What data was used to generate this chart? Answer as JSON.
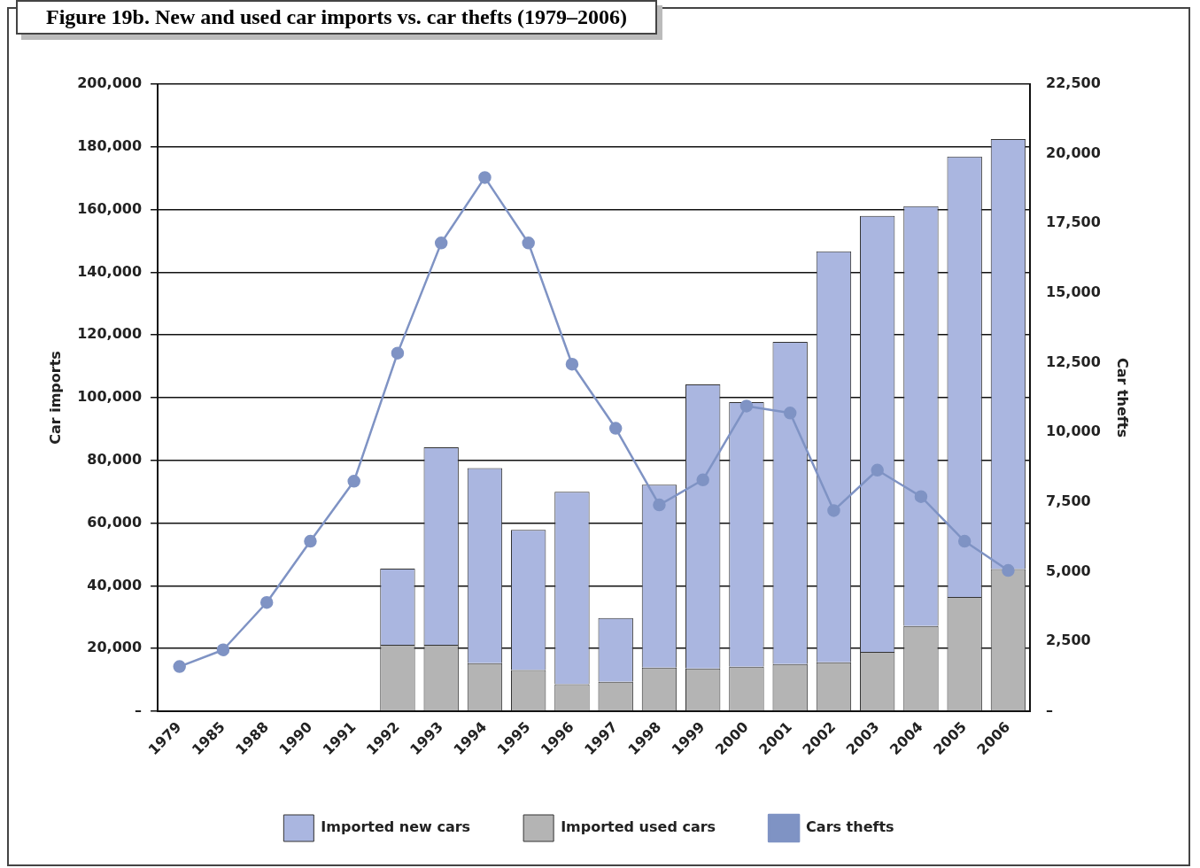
{
  "chart_data": {
    "type": "bar",
    "title": "Figure 19b. New and used car imports vs. car thefts (1979–2006)",
    "ylabel": "Car imports",
    "y2label": "Car thefts",
    "categories": [
      "1979",
      "1985",
      "1988",
      "1990",
      "1991",
      "1992",
      "1993",
      "1994",
      "1995",
      "1996",
      "1997",
      "1998",
      "1999",
      "2000",
      "2001",
      "2002",
      "2003",
      "2004",
      "2005",
      "2006"
    ],
    "stacked": true,
    "series": [
      {
        "name": "Imported used cars",
        "color": "#b4b4b4",
        "values": [
          null,
          null,
          null,
          null,
          null,
          21200,
          21200,
          15300,
          13100,
          8600,
          9400,
          13900,
          13600,
          14200,
          15000,
          15600,
          18900,
          27200,
          36400,
          45300
        ]
      },
      {
        "name": "Imported new cars",
        "color": "#aab6e0",
        "values": [
          null,
          null,
          null,
          null,
          null,
          24300,
          63000,
          62200,
          44700,
          61400,
          20300,
          58300,
          90600,
          84400,
          102800,
          131100,
          139100,
          133900,
          140500,
          137200
        ]
      },
      {
        "name": "Cars thefts",
        "type": "line",
        "axis": "y2",
        "color": "#7f93c4",
        "marker": "circle",
        "values": [
          1600,
          2200,
          3900,
          6100,
          8250,
          12850,
          16800,
          19150,
          16800,
          12450,
          10150,
          7400,
          8300,
          10950,
          10700,
          7200,
          8650,
          7700,
          6100,
          5050
        ]
      }
    ],
    "ylim": [
      0,
      200000
    ],
    "yticks": [
      {
        "value": 0,
        "label": "–"
      },
      {
        "value": 20000,
        "label": "20,000"
      },
      {
        "value": 40000,
        "label": "40,000"
      },
      {
        "value": 60000,
        "label": "60,000"
      },
      {
        "value": 80000,
        "label": "80,000"
      },
      {
        "value": 100000,
        "label": "100,000"
      },
      {
        "value": 120000,
        "label": "120,000"
      },
      {
        "value": 140000,
        "label": "140,000"
      },
      {
        "value": 160000,
        "label": "160,000"
      },
      {
        "value": 180000,
        "label": "180,000"
      },
      {
        "value": 200000,
        "label": "200,000"
      }
    ],
    "y2lim": [
      0,
      22500
    ],
    "y2ticks": [
      {
        "value": 0,
        "label": "–"
      },
      {
        "value": 2500,
        "label": "2,500"
      },
      {
        "value": 5000,
        "label": "5,000"
      },
      {
        "value": 7500,
        "label": "7,500"
      },
      {
        "value": 10000,
        "label": "10,000"
      },
      {
        "value": 12500,
        "label": "12,500"
      },
      {
        "value": 15000,
        "label": "15,000"
      },
      {
        "value": 17500,
        "label": "17,500"
      },
      {
        "value": 20000,
        "label": "20,000"
      },
      {
        "value": 22500,
        "label": "22,500"
      }
    ],
    "grid": "y",
    "legend": "bottom"
  }
}
